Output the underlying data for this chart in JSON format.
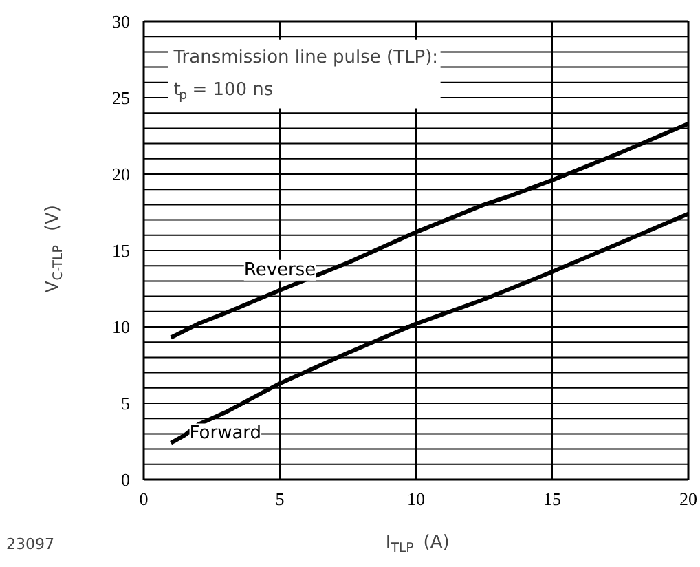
{
  "chart_data": {
    "type": "line",
    "xlabel": "I$_{TLP}$ (A)",
    "ylabel": "V$_{C-TLP}$ (V)",
    "annotations": [
      "Transmission line pulse (TLP):",
      "t$_{p}$ = 100 ns",
      "23097"
    ],
    "series": [
      {
        "name": "Reverse",
        "color": "#000000",
        "x": [
          1,
          2,
          3,
          5,
          7.5,
          10,
          12.5,
          13.5,
          15,
          17.5,
          20
        ],
        "values": [
          9.3,
          10.2,
          10.9,
          12.4,
          14.2,
          16.2,
          18.0,
          18.6,
          19.6,
          21.4,
          23.3
        ]
      },
      {
        "name": "Forward",
        "color": "#000000",
        "x": [
          1,
          1.5,
          2,
          3,
          5,
          7.5,
          10,
          12.5,
          15,
          17.5,
          20
        ],
        "values": [
          2.4,
          2.9,
          3.6,
          4.4,
          6.3,
          8.3,
          10.2,
          11.8,
          13.6,
          15.5,
          17.4
        ]
      }
    ],
    "xlim": [
      0,
      20
    ],
    "ylim": [
      0,
      30
    ],
    "xticks": [
      0,
      5,
      10,
      15,
      20
    ],
    "yticks": [
      0,
      5,
      10,
      15,
      20,
      25,
      30
    ],
    "grid": true,
    "marker": "none",
    "line_style": "solid"
  }
}
